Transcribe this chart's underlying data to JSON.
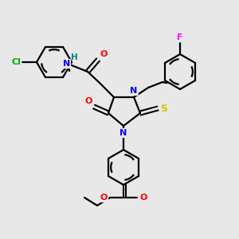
{
  "bg_color": "#e8e8e8",
  "atom_colors": {
    "N": "#0000ff",
    "O": "#ff0000",
    "S": "#cccc00",
    "Cl": "#00aa00",
    "F": "#ff00ff",
    "H": "#008080",
    "C": "#000000"
  }
}
